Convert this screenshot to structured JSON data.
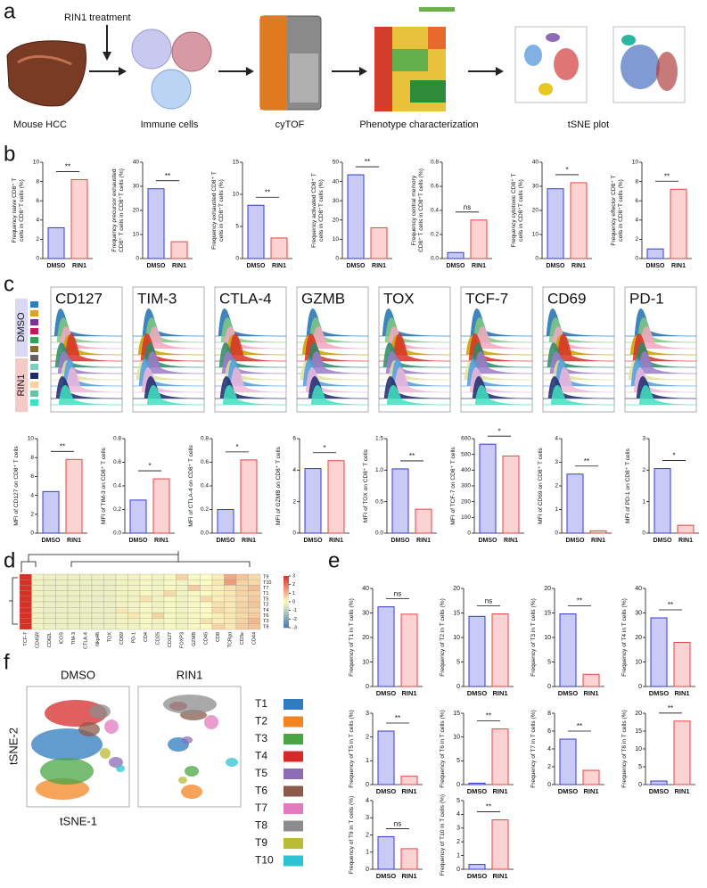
{
  "panel_labels": [
    "a",
    "b",
    "c",
    "d",
    "e",
    "f"
  ],
  "workflow": {
    "treatment": "RIN1 treatment",
    "steps": [
      "Mouse HCC",
      "Immune cells",
      "cyTOF",
      "Phenotype characterization",
      "tSNE plot"
    ]
  },
  "histograms": {
    "markers": [
      "CD127",
      "TIM-3",
      "CTLA-4",
      "GZMB",
      "TOX",
      "TCF-7",
      "CD69",
      "PD-1"
    ],
    "groups": [
      "DMSO",
      "RIN1"
    ]
  },
  "chart_data": [
    {
      "type": "bar",
      "ylabel": [
        "Frequency naive CD8⁺ T",
        "cells in CD8⁺T cells (%)"
      ],
      "categories": [
        "DMSO",
        "RIN1"
      ],
      "values": [
        3.2,
        8.2
      ],
      "colors": [
        "#c9cbf6",
        "#fcd3d3"
      ],
      "edge_colors": [
        "#3538d8",
        "#e64545"
      ],
      "ylim": [
        0,
        10
      ],
      "yticks": [
        0,
        2,
        4,
        6,
        8,
        10
      ],
      "annotation": "**"
    },
    {
      "type": "bar",
      "ylabel": [
        "Frequency precursor exhausted",
        "CD8⁺ T cells in CD8⁺T cells (%)"
      ],
      "categories": [
        "DMSO",
        "RIN1"
      ],
      "values": [
        29,
        7
      ],
      "colors": [
        "#c9cbf6",
        "#fcd3d3"
      ],
      "edge_colors": [
        "#3538d8",
        "#e64545"
      ],
      "ylim": [
        0,
        40
      ],
      "yticks": [
        0,
        10,
        20,
        30,
        40
      ],
      "annotation": "**"
    },
    {
      "type": "bar",
      "ylabel": [
        "Frequency exhausted CD8⁺ T",
        "cells in CD8⁺T cells (%)"
      ],
      "categories": [
        "DMSO",
        "RIN1"
      ],
      "values": [
        8.3,
        3.2
      ],
      "colors": [
        "#c9cbf6",
        "#fcd3d3"
      ],
      "edge_colors": [
        "#3538d8",
        "#e64545"
      ],
      "ylim": [
        0,
        15
      ],
      "yticks": [
        0,
        5,
        10,
        15
      ],
      "annotation": "**"
    },
    {
      "type": "bar",
      "ylabel": [
        "Frequency activated CD8⁺ T",
        "cells in CD8⁺T cells (%)"
      ],
      "categories": [
        "DMSO",
        "RIN1"
      ],
      "values": [
        43.5,
        16
      ],
      "colors": [
        "#c9cbf6",
        "#fcd3d3"
      ],
      "edge_colors": [
        "#3538d8",
        "#e64545"
      ],
      "ylim": [
        0,
        50
      ],
      "yticks": [
        0,
        10,
        20,
        30,
        40,
        50
      ],
      "annotation": "**"
    },
    {
      "type": "bar",
      "ylabel": [
        "Frequency central memory",
        "CD8⁺ T cells in CD8⁺T cells (%)"
      ],
      "categories": [
        "DMSO",
        "RIN1"
      ],
      "values": [
        0.05,
        0.32
      ],
      "colors": [
        "#c9cbf6",
        "#fcd3d3"
      ],
      "edge_colors": [
        "#3538d8",
        "#e64545"
      ],
      "ylim": [
        0,
        0.8
      ],
      "yticks": [
        {
          "value": 0,
          "label": "0.0"
        },
        0.2,
        0.4,
        0.6,
        0.8
      ],
      "annotation": "ns"
    },
    {
      "type": "bar",
      "ylabel": [
        "Frequency cytotoxic CD8⁺ T",
        "cells in CD8⁺T cells (%)"
      ],
      "categories": [
        "DMSO",
        "RIN1"
      ],
      "values": [
        29,
        31.5
      ],
      "colors": [
        "#c9cbf6",
        "#fcd3d3"
      ],
      "edge_colors": [
        "#3538d8",
        "#e64545"
      ],
      "ylim": [
        0,
        40
      ],
      "yticks": [
        0,
        10,
        20,
        30,
        40
      ],
      "annotation": "*"
    },
    {
      "type": "bar",
      "ylabel": [
        "Frequency effector CD8⁺ T",
        "cells in CD8⁺T cells (%)"
      ],
      "categories": [
        "DMSO",
        "RIN1"
      ],
      "values": [
        1,
        7.2
      ],
      "colors": [
        "#c9cbf6",
        "#fcd3d3"
      ],
      "edge_colors": [
        "#3538d8",
        "#e64545"
      ],
      "ylim": [
        0,
        10
      ],
      "yticks": [
        0,
        2,
        4,
        6,
        8,
        10
      ],
      "annotation": "**"
    },
    {
      "type": "bar",
      "ylabel": [
        "MFI of CD127 on CD8⁺ T cells"
      ],
      "categories": [
        "DMSO",
        "RIN1"
      ],
      "values": [
        4.4,
        7.8
      ],
      "colors": [
        "#c9cbf6",
        "#fcd3d3"
      ],
      "edge_colors": [
        "#3538d8",
        "#e64545"
      ],
      "ylim": [
        0,
        10
      ],
      "yticks": [
        0,
        2,
        4,
        6,
        8,
        10
      ],
      "annotation": "**"
    },
    {
      "type": "bar",
      "ylabel": [
        "MFI of TIM-3 on CD8⁺ T cells"
      ],
      "categories": [
        "DMSO",
        "RIN1"
      ],
      "values": [
        0.28,
        0.46
      ],
      "colors": [
        "#c9cbf6",
        "#fcd3d3"
      ],
      "edge_colors": [
        "#3538d8",
        "#e64545"
      ],
      "ylim": [
        0,
        0.8
      ],
      "yticks": [
        {
          "value": 0,
          "label": "0.0"
        },
        0.2,
        0.4,
        0.6,
        0.8
      ],
      "annotation": "*"
    },
    {
      "type": "bar",
      "ylabel": [
        "MFI of CTLA-4 on CD8⁺ T cells"
      ],
      "categories": [
        "DMSO",
        "RIN1"
      ],
      "values": [
        0.2,
        0.62
      ],
      "colors": [
        "#c9cbf6",
        "#fcd3d3"
      ],
      "edge_colors": [
        "#3538d8",
        "#e64545"
      ],
      "ylim": [
        0,
        0.8
      ],
      "yticks": [
        {
          "value": 0,
          "label": "0.0"
        },
        0.2,
        0.4,
        0.6,
        0.8
      ],
      "annotation": "*"
    },
    {
      "type": "bar",
      "ylabel": [
        "MFI of GZMB on CD8⁺ T cells"
      ],
      "categories": [
        "DMSO",
        "RIN1"
      ],
      "values": [
        4.1,
        4.6
      ],
      "colors": [
        "#c9cbf6",
        "#fcd3d3"
      ],
      "edge_colors": [
        "#3538d8",
        "#e64545"
      ],
      "ylim": [
        0,
        6
      ],
      "yticks": [
        0,
        2,
        4,
        6
      ],
      "annotation": "*"
    },
    {
      "type": "bar",
      "ylabel": [
        "MFI of TOX on CD8⁺ T cells"
      ],
      "categories": [
        "DMSO",
        "RIN1"
      ],
      "values": [
        1.02,
        0.38
      ],
      "colors": [
        "#c9cbf6",
        "#fcd3d3"
      ],
      "edge_colors": [
        "#3538d8",
        "#e64545"
      ],
      "ylim": [
        0,
        1.5
      ],
      "yticks": [
        {
          "value": 0,
          "label": "0.0"
        },
        0.5,
        {
          "value": 1,
          "label": "1.0"
        },
        1.5
      ],
      "annotation": "**"
    },
    {
      "type": "bar",
      "ylabel": [
        "MFI of TCF-7 on CD8⁺ T cells"
      ],
      "categories": [
        "DMSO",
        "RIN1"
      ],
      "values": [
        565,
        490
      ],
      "colors": [
        "#c9cbf6",
        "#fcd3d3"
      ],
      "edge_colors": [
        "#3538d8",
        "#e64545"
      ],
      "ylim": [
        0,
        600
      ],
      "yticks": [
        0,
        100,
        200,
        300,
        400,
        500,
        600
      ],
      "annotation": "*"
    },
    {
      "type": "bar",
      "ylabel": [
        "MFI of CD69 on CD8⁺ T cells"
      ],
      "categories": [
        "DMSO",
        "RIN1"
      ],
      "values": [
        2.5,
        0.1
      ],
      "colors": [
        "#c9cbf6",
        "#fcd3d3"
      ],
      "edge_colors": [
        "#3538d8",
        "#e64545"
      ],
      "ylim": [
        0,
        4
      ],
      "yticks": [
        0,
        1,
        2,
        3,
        4
      ],
      "annotation": "**"
    },
    {
      "type": "bar",
      "ylabel": [
        "MFI of PD-1 on CD8⁺ T cells"
      ],
      "categories": [
        "DMSO",
        "RIN1"
      ],
      "values": [
        2.05,
        0.25
      ],
      "colors": [
        "#c9cbf6",
        "#fcd3d3"
      ],
      "edge_colors": [
        "#3538d8",
        "#e64545"
      ],
      "ylim": [
        0,
        3
      ],
      "yticks": [
        0,
        1,
        2,
        3
      ],
      "annotation": "*"
    },
    {
      "type": "heatmap",
      "columns": [
        "TCF-7",
        "CD45R",
        "CD62L",
        "ICOS",
        "TIM-3",
        "CTLA-4",
        "Nkp46",
        "TOX",
        "CD69",
        "PD-1",
        "CD4",
        "CD25",
        "CD127",
        "FOXP3",
        "GZMB",
        "CD45",
        "CD8",
        "TCRgd",
        "CD3e",
        "CD44"
      ],
      "rows": [
        "T9",
        "T10",
        "T7",
        "T1",
        "T5",
        "T2",
        "T4",
        "T6",
        "T3",
        "T8"
      ],
      "values": [
        [
          3,
          -0.2,
          -0.3,
          -0.3,
          -0.3,
          -0.3,
          -0.3,
          -0.3,
          -0.2,
          -0.2,
          -0.1,
          -0.2,
          -0.1,
          0.6,
          -0.1,
          0,
          0.2,
          1.2,
          0.8,
          0.5
        ],
        [
          3,
          -0.2,
          -0.3,
          -0.3,
          -0.3,
          -0.3,
          -0.3,
          -0.3,
          -0.2,
          -0.2,
          -0.1,
          -0.2,
          -0.1,
          -0.2,
          -0.1,
          0,
          0.3,
          1.4,
          0.6,
          0.5
        ],
        [
          3,
          -0.2,
          -0.3,
          -0.3,
          -0.3,
          -0.3,
          -0.3,
          -0.3,
          -0.2,
          -0.2,
          -0.1,
          -0.2,
          -0.1,
          -0.2,
          0.7,
          0.2,
          0.2,
          0.4,
          0.6,
          0.9
        ],
        [
          3,
          -0.2,
          -0.3,
          -0.3,
          -0.3,
          -0.3,
          -0.3,
          -0.3,
          -0.2,
          -0.2,
          -0.1,
          -0.2,
          0.5,
          -0.2,
          -0.1,
          0,
          0.2,
          0.3,
          0.6,
          0.6
        ],
        [
          3,
          -0.2,
          -0.3,
          -0.3,
          -0.3,
          -0.3,
          -0.3,
          -0.3,
          -0.2,
          -0.2,
          0.4,
          -0.2,
          -0.1,
          -0.2,
          -0.1,
          0.5,
          0.2,
          0.3,
          0.5,
          0.7
        ],
        [
          3,
          -0.2,
          -0.3,
          -0.3,
          -0.3,
          -0.3,
          -0.3,
          -0.3,
          -0.2,
          -0.2,
          -0.1,
          -0.2,
          -0.1,
          -0.2,
          -0.1,
          0,
          0.4,
          0.3,
          0.6,
          0.8
        ],
        [
          3,
          -0.2,
          -0.3,
          -0.3,
          -0.3,
          -0.3,
          -0.3,
          -0.3,
          0.3,
          -0.2,
          -0.1,
          -0.2,
          -0.1,
          -0.2,
          -0.1,
          0,
          0.5,
          0.3,
          0.6,
          0.6
        ],
        [
          3,
          -0.2,
          -0.3,
          -0.3,
          -0.3,
          -0.3,
          -0.3,
          -0.3,
          -0.2,
          0.3,
          -0.1,
          0.6,
          -0.1,
          -0.2,
          -0.1,
          0,
          0.2,
          0.3,
          0.5,
          0.7
        ],
        [
          3,
          -0.2,
          -0.3,
          -0.3,
          -0.3,
          -0.3,
          -0.3,
          -0.3,
          -0.2,
          -0.2,
          -0.1,
          -0.2,
          -0.1,
          -0.2,
          -0.1,
          0.4,
          0.2,
          0.3,
          0.6,
          1.0
        ],
        [
          3,
          -0.2,
          -0.3,
          -0.3,
          -0.3,
          -0.3,
          -0.3,
          -0.3,
          -0.2,
          -0.2,
          -0.1,
          -0.2,
          -0.1,
          -0.2,
          -0.1,
          0,
          0.6,
          0.3,
          0.7,
          0.8
        ]
      ],
      "colorscale": [
        "#4575b4",
        "#fdfcc4",
        "#d73027"
      ],
      "zlim": [
        -3,
        3
      ],
      "zticks": [
        3,
        2,
        1,
        0,
        -1,
        -2,
        -3
      ]
    },
    {
      "type": "bar",
      "ylabel": [
        "Frequency of T1 in T cells (%)"
      ],
      "categories": [
        "DMSO",
        "RIN1"
      ],
      "values": [
        32.5,
        29.5
      ],
      "colors": [
        "#c9cbf6",
        "#fcd3d3"
      ],
      "edge_colors": [
        "#3538d8",
        "#e64545"
      ],
      "ylim": [
        0,
        40
      ],
      "yticks": [
        0,
        10,
        20,
        30,
        40
      ],
      "annotation": "ns"
    },
    {
      "type": "bar",
      "ylabel": [
        "Frequency of T2 in T cells (%)"
      ],
      "categories": [
        "DMSO",
        "RIN1"
      ],
      "values": [
        14.3,
        14.8
      ],
      "colors": [
        "#c9cbf6",
        "#fcd3d3"
      ],
      "edge_colors": [
        "#3538d8",
        "#e64545"
      ],
      "ylim": [
        0,
        20
      ],
      "yticks": [
        0,
        5,
        10,
        15,
        20
      ],
      "annotation": "ns"
    },
    {
      "type": "bar",
      "ylabel": [
        "Frequency of T3 in T cells (%)"
      ],
      "categories": [
        "DMSO",
        "RIN1"
      ],
      "values": [
        14.8,
        2.5
      ],
      "colors": [
        "#c9cbf6",
        "#fcd3d3"
      ],
      "edge_colors": [
        "#3538d8",
        "#e64545"
      ],
      "ylim": [
        0,
        20
      ],
      "yticks": [
        0,
        5,
        10,
        15,
        20
      ],
      "annotation": "**"
    },
    {
      "type": "bar",
      "ylabel": [
        "Frequency of T4 in T cells (%)"
      ],
      "categories": [
        "DMSO",
        "RIN1"
      ],
      "values": [
        28,
        18
      ],
      "colors": [
        "#c9cbf6",
        "#fcd3d3"
      ],
      "edge_colors": [
        "#3538d8",
        "#e64545"
      ],
      "ylim": [
        0,
        40
      ],
      "yticks": [
        0,
        10,
        20,
        30,
        40
      ],
      "annotation": "**"
    },
    {
      "type": "bar",
      "ylabel": [
        "Frequency of T5 in T cells (%)"
      ],
      "categories": [
        "DMSO",
        "RIN1"
      ],
      "values": [
        2.25,
        0.35
      ],
      "colors": [
        "#c9cbf6",
        "#fcd3d3"
      ],
      "edge_colors": [
        "#3538d8",
        "#e64545"
      ],
      "ylim": [
        0,
        3
      ],
      "yticks": [
        0,
        1,
        2,
        3
      ],
      "annotation": "**"
    },
    {
      "type": "bar",
      "ylabel": [
        "Frequency of T6 in T cells (%)"
      ],
      "categories": [
        "DMSO",
        "RIN1"
      ],
      "values": [
        0.3,
        11.7
      ],
      "colors": [
        "#c9cbf6",
        "#fcd3d3"
      ],
      "edge_colors": [
        "#3538d8",
        "#e64545"
      ],
      "ylim": [
        0,
        15
      ],
      "yticks": [
        0,
        5,
        10,
        15
      ],
      "annotation": "**"
    },
    {
      "type": "bar",
      "ylabel": [
        "Frequency of T7 in T cells (%)"
      ],
      "categories": [
        "DMSO",
        "RIN1"
      ],
      "values": [
        5.1,
        1.6
      ],
      "colors": [
        "#c9cbf6",
        "#fcd3d3"
      ],
      "edge_colors": [
        "#3538d8",
        "#e64545"
      ],
      "ylim": [
        0,
        8
      ],
      "yticks": [
        0,
        2,
        4,
        6,
        8
      ],
      "annotation": "**"
    },
    {
      "type": "bar",
      "ylabel": [
        "Frequency of T8 in T cells (%)"
      ],
      "categories": [
        "DMSO",
        "RIN1"
      ],
      "values": [
        1,
        17.8
      ],
      "colors": [
        "#c9cbf6",
        "#fcd3d3"
      ],
      "edge_colors": [
        "#3538d8",
        "#e64545"
      ],
      "ylim": [
        0,
        20
      ],
      "yticks": [
        0,
        5,
        10,
        15,
        20
      ],
      "annotation": "**"
    },
    {
      "type": "bar",
      "ylabel": [
        "Frequency of T9 in T cells (%)"
      ],
      "categories": [
        "DMSO",
        "RIN1"
      ],
      "values": [
        1.9,
        1.2
      ],
      "colors": [
        "#c9cbf6",
        "#fcd3d3"
      ],
      "edge_colors": [
        "#3538d8",
        "#e64545"
      ],
      "ylim": [
        0,
        4
      ],
      "yticks": [
        0,
        1,
        2,
        3,
        4
      ],
      "annotation": "ns"
    },
    {
      "type": "bar",
      "ylabel": [
        "Frequency of T10 in T cells (%)"
      ],
      "categories": [
        "DMSO",
        "RIN1"
      ],
      "values": [
        0.35,
        3.6
      ],
      "colors": [
        "#c9cbf6",
        "#fcd3d3"
      ],
      "edge_colors": [
        "#3538d8",
        "#e64545"
      ],
      "ylim": [
        0,
        5
      ],
      "yticks": [
        0,
        1,
        2,
        3,
        4,
        5
      ],
      "annotation": "**"
    },
    {
      "type": "tsne",
      "panels": [
        "DMSO",
        "RIN1"
      ],
      "xlabel": "tSNE-1",
      "ylabel": "tSNE-2",
      "series": [
        {
          "name": "T1",
          "color": "#2e7bbf"
        },
        {
          "name": "T2",
          "color": "#f28522"
        },
        {
          "name": "T3",
          "color": "#4aa544"
        },
        {
          "name": "T4",
          "color": "#d62a2a"
        },
        {
          "name": "T5",
          "color": "#8e6bb5"
        },
        {
          "name": "T6",
          "color": "#8b5a4a"
        },
        {
          "name": "T7",
          "color": "#e07bc0"
        },
        {
          "name": "T8",
          "color": "#8c8c8c"
        },
        {
          "name": "T9",
          "color": "#b9bb35"
        },
        {
          "name": "T10",
          "color": "#2cc3d3"
        }
      ]
    }
  ]
}
